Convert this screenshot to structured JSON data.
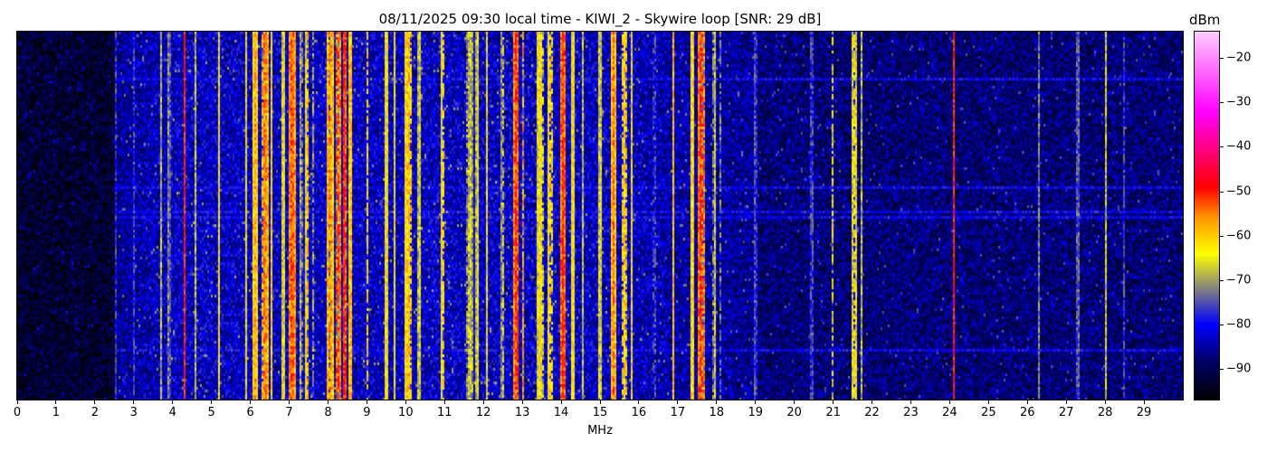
{
  "chart_data": {
    "type": "heatmap",
    "title": "08/11/2025 09:30 local time - KIWI_2 - Skywire loop [SNR: 29 dB]",
    "xlabel": "MHz",
    "ylabel": "",
    "xlim": [
      0,
      30
    ],
    "x_ticks": [
      "0",
      "1",
      "2",
      "3",
      "4",
      "5",
      "6",
      "7",
      "8",
      "9",
      "10",
      "11",
      "12",
      "13",
      "14",
      "15",
      "16",
      "17",
      "18",
      "19",
      "20",
      "21",
      "22",
      "23",
      "24",
      "25",
      "26",
      "27",
      "28",
      "29"
    ],
    "colorbar": {
      "label": "dBm",
      "range": [
        -97,
        -14
      ],
      "ticks": [
        "−20",
        "−30",
        "−40",
        "−50",
        "−60",
        "−70",
        "−80",
        "−90"
      ],
      "tick_values": [
        -20,
        -30,
        -40,
        -50,
        -60,
        -70,
        -80,
        -90
      ],
      "colormap_stops": [
        {
          "value": -97,
          "color": "#000000"
        },
        {
          "value": -88,
          "color": "#00006a"
        },
        {
          "value": -80,
          "color": "#0000ff"
        },
        {
          "value": -72,
          "color": "#808080"
        },
        {
          "value": -64,
          "color": "#ffff00"
        },
        {
          "value": -56,
          "color": "#ff9900"
        },
        {
          "value": -49,
          "color": "#ff0000"
        },
        {
          "value": -32,
          "color": "#ff00ff"
        },
        {
          "value": -14,
          "color": "#ffccff"
        }
      ]
    },
    "noise_floor": [
      {
        "from_mhz": 0,
        "to_mhz": 2.5,
        "level": -93
      },
      {
        "from_mhz": 2.5,
        "to_mhz": 19,
        "level": -83
      },
      {
        "from_mhz": 19,
        "to_mhz": 30,
        "level": -88
      }
    ],
    "signals": [
      {
        "mhz": 2.55,
        "level": -75,
        "width": 0.03
      },
      {
        "mhz": 3.0,
        "level": -76,
        "width": 0.03
      },
      {
        "mhz": 3.7,
        "level": -68,
        "width": 0.03
      },
      {
        "mhz": 3.9,
        "level": -70,
        "width": 0.04
      },
      {
        "mhz": 4.3,
        "level": -48,
        "width": 0.03
      },
      {
        "mhz": 4.6,
        "level": -66,
        "width": 0.03
      },
      {
        "mhz": 5.2,
        "level": -62,
        "width": 0.03
      },
      {
        "mhz": 5.9,
        "level": -62,
        "width": 0.03
      },
      {
        "mhz": 6.12,
        "level": -57,
        "width": 0.07
      },
      {
        "mhz": 6.38,
        "level": -54,
        "width": 0.09
      },
      {
        "mhz": 6.55,
        "level": -62,
        "width": 0.04
      },
      {
        "mhz": 6.85,
        "level": -62,
        "width": 0.04
      },
      {
        "mhz": 7.07,
        "level": -52,
        "width": 0.1
      },
      {
        "mhz": 7.3,
        "level": -68,
        "width": 0.04
      },
      {
        "mhz": 7.47,
        "level": -58,
        "width": 0.04
      },
      {
        "mhz": 7.62,
        "level": -70,
        "width": 0.03
      },
      {
        "mhz": 8.05,
        "level": -55,
        "width": 0.09
      },
      {
        "mhz": 8.25,
        "level": -50,
        "width": 0.07
      },
      {
        "mhz": 8.42,
        "level": -48,
        "width": 0.05
      },
      {
        "mhz": 8.57,
        "level": -56,
        "width": 0.04
      },
      {
        "mhz": 9.0,
        "level": -60,
        "width": 0.03
      },
      {
        "mhz": 9.5,
        "level": -60,
        "width": 0.04
      },
      {
        "mhz": 9.72,
        "level": -62,
        "width": 0.03
      },
      {
        "mhz": 10.07,
        "level": -58,
        "width": 0.1
      },
      {
        "mhz": 10.35,
        "level": -64,
        "width": 0.04
      },
      {
        "mhz": 10.95,
        "level": -60,
        "width": 0.04
      },
      {
        "mhz": 11.65,
        "level": -66,
        "width": 0.09
      },
      {
        "mhz": 11.85,
        "level": -64,
        "width": 0.05
      },
      {
        "mhz": 12.1,
        "level": -62,
        "width": 0.03
      },
      {
        "mhz": 12.5,
        "level": -66,
        "width": 0.04
      },
      {
        "mhz": 12.85,
        "level": -50,
        "width": 0.07
      },
      {
        "mhz": 13.02,
        "level": -57,
        "width": 0.04
      },
      {
        "mhz": 13.45,
        "level": -62,
        "width": 0.09
      },
      {
        "mhz": 13.72,
        "level": -60,
        "width": 0.09
      },
      {
        "mhz": 14.05,
        "level": -50,
        "width": 0.07
      },
      {
        "mhz": 14.3,
        "level": -60,
        "width": 0.04
      },
      {
        "mhz": 14.55,
        "level": -66,
        "width": 0.03
      },
      {
        "mhz": 15.0,
        "level": -62,
        "width": 0.03
      },
      {
        "mhz": 15.35,
        "level": -54,
        "width": 0.05
      },
      {
        "mhz": 15.65,
        "level": -58,
        "width": 0.07
      },
      {
        "mhz": 15.8,
        "level": -62,
        "width": 0.03
      },
      {
        "mhz": 16.4,
        "level": -72,
        "width": 0.03
      },
      {
        "mhz": 16.88,
        "level": -58,
        "width": 0.03
      },
      {
        "mhz": 17.38,
        "level": -58,
        "width": 0.04
      },
      {
        "mhz": 17.6,
        "level": -50,
        "width": 0.08
      },
      {
        "mhz": 17.95,
        "level": -66,
        "width": 0.04
      },
      {
        "mhz": 18.1,
        "level": -72,
        "width": 0.03
      },
      {
        "mhz": 19.0,
        "level": -72,
        "width": 0.03
      },
      {
        "mhz": 20.45,
        "level": -72,
        "width": 0.03
      },
      {
        "mhz": 21.0,
        "level": -62,
        "width": 0.03
      },
      {
        "mhz": 21.55,
        "level": -62,
        "width": 0.07
      },
      {
        "mhz": 21.72,
        "level": -66,
        "width": 0.03
      },
      {
        "mhz": 24.1,
        "level": -48,
        "width": 0.02
      },
      {
        "mhz": 26.3,
        "level": -72,
        "width": 0.03
      },
      {
        "mhz": 27.3,
        "level": -70,
        "width": 0.03
      },
      {
        "mhz": 28.0,
        "level": -62,
        "width": 0.02
      },
      {
        "mhz": 28.5,
        "level": -74,
        "width": 0.03
      }
    ]
  }
}
